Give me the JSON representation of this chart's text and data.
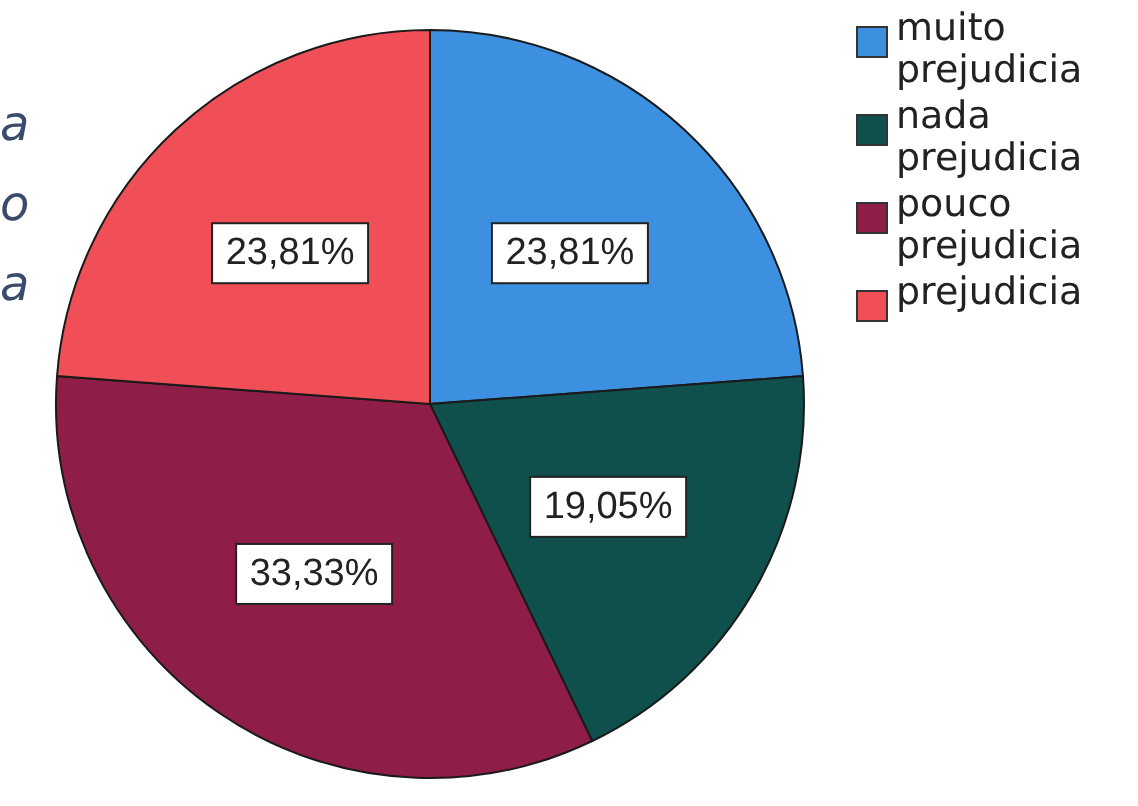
{
  "chart_data": {
    "type": "pie",
    "categories": [
      "muito prejudicia",
      "nada prejudicia",
      "pouco prejudicia",
      "prejudicia"
    ],
    "values": [
      23.81,
      19.05,
      33.33,
      23.81
    ],
    "colors": [
      "#3d8fe0",
      "#0f4f4c",
      "#8e1d47",
      "#f04f58"
    ],
    "value_labels": [
      "23,81%",
      "19,05%",
      "33,33%",
      "23,81%"
    ],
    "legend": "right",
    "annotations": [
      "a",
      "o",
      "a"
    ]
  }
}
